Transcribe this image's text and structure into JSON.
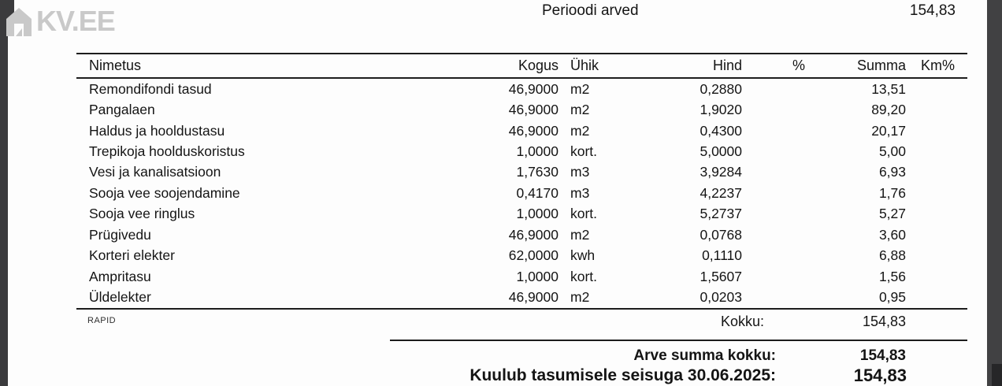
{
  "logo": {
    "text": "KV.EE",
    "icon": "house-icon",
    "color": "#c9c9c9"
  },
  "header": {
    "title": "Perioodi arved",
    "total": "154,83"
  },
  "table": {
    "columns": [
      "Nimetus",
      "Kogus",
      "Ühik",
      "Hind",
      "%",
      "Summa",
      "Km%"
    ],
    "rows": [
      {
        "nimetus": "Remondifondi tasud",
        "kogus": "46,9000",
        "yhik": "m2",
        "hind": "0,2880",
        "pct": "",
        "summa": "13,51",
        "km": ""
      },
      {
        "nimetus": "Pangalaen",
        "kogus": "46,9000",
        "yhik": "m2",
        "hind": "1,9020",
        "pct": "",
        "summa": "89,20",
        "km": ""
      },
      {
        "nimetus": "Haldus ja hooldustasu",
        "kogus": "46,9000",
        "yhik": "m2",
        "hind": "0,4300",
        "pct": "",
        "summa": "20,17",
        "km": ""
      },
      {
        "nimetus": "Trepikoja hoolduskoristus",
        "kogus": "1,0000",
        "yhik": "kort.",
        "hind": "5,0000",
        "pct": "",
        "summa": "5,00",
        "km": ""
      },
      {
        "nimetus": "Vesi ja kanalisatsioon",
        "kogus": "1,7630",
        "yhik": "m3",
        "hind": "3,9284",
        "pct": "",
        "summa": "6,93",
        "km": ""
      },
      {
        "nimetus": "Sooja vee soojendamine",
        "kogus": "0,4170",
        "yhik": "m3",
        "hind": "4,2237",
        "pct": "",
        "summa": "1,76",
        "km": ""
      },
      {
        "nimetus": "Sooja vee ringlus",
        "kogus": "1,0000",
        "yhik": "kort.",
        "hind": "5,2737",
        "pct": "",
        "summa": "5,27",
        "km": ""
      },
      {
        "nimetus": "Prügivedu",
        "kogus": "46,9000",
        "yhik": "m2",
        "hind": "0,0768",
        "pct": "",
        "summa": "3,60",
        "km": ""
      },
      {
        "nimetus": "Korteri elekter",
        "kogus": "62,0000",
        "yhik": "kwh",
        "hind": "0,1110",
        "pct": "",
        "summa": "6,88",
        "km": ""
      },
      {
        "nimetus": "Ampritasu",
        "kogus": "1,0000",
        "yhik": "kort.",
        "hind": "1,5607",
        "pct": "",
        "summa": "1,56",
        "km": ""
      },
      {
        "nimetus": "Üldelekter",
        "kogus": "46,9000",
        "yhik": "m2",
        "hind": "0,0203",
        "pct": "",
        "summa": "0,95",
        "km": ""
      }
    ]
  },
  "totals": {
    "kokku_label": "Kokku:",
    "kokku_value": "154,83",
    "arve_summa_label": "Arve summa kokku:",
    "arve_summa_value": "154,83",
    "kuulub_label": "Kuulub tasumisele seisuga 30.06.2025:",
    "kuulub_value": "154,83"
  },
  "vendor_mark": "RAPID",
  "colors": {
    "chrome_bar": "#3b3b3d",
    "chrome_corner": "#262628",
    "watermark": "#c9c9c9",
    "text": "#141414"
  }
}
